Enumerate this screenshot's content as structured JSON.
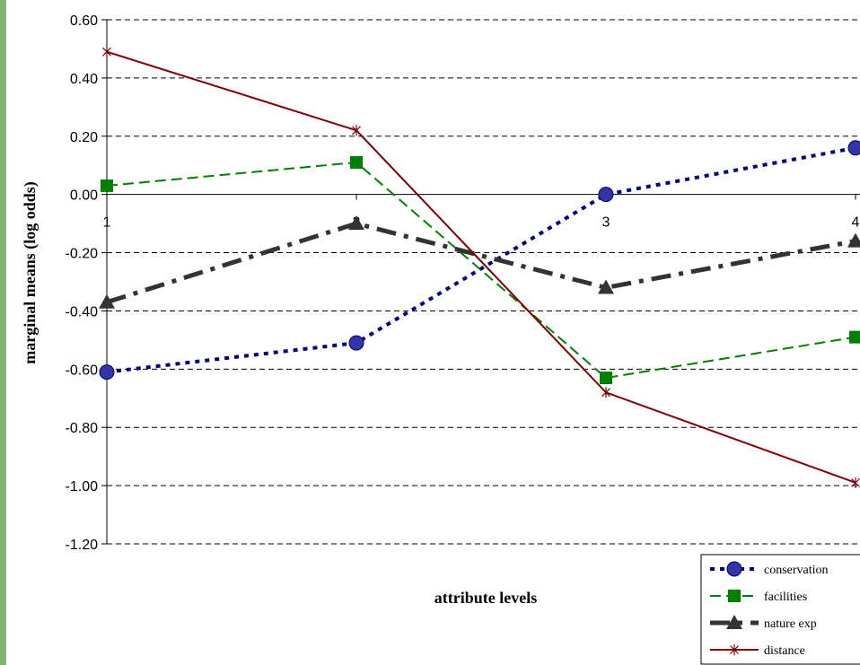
{
  "chart_data": {
    "type": "line",
    "x": [
      1,
      2,
      3,
      4
    ],
    "categories": [
      "1",
      "2",
      "3",
      "4"
    ],
    "ylabel": "marginal means (log odds)",
    "xlabel": "attribute levels",
    "ylim": [
      -1.2,
      0.6
    ],
    "yticks": [
      "0.60",
      "0.40",
      "0.20",
      "0.00",
      "-0.20",
      "-0.40",
      "-0.60",
      "-0.80",
      "-1.00",
      "-1.20"
    ],
    "grid": "horizontal dashed",
    "legend_position": "bottom-right",
    "series": [
      {
        "name": "conservation",
        "values": [
          -0.61,
          -0.51,
          0.0,
          0.16
        ],
        "color": "#000080",
        "marker": "circle",
        "line": "dotted"
      },
      {
        "name": "facilities",
        "values": [
          0.03,
          0.11,
          -0.63,
          -0.49
        ],
        "color": "#008000",
        "marker": "square",
        "line": "dashed"
      },
      {
        "name": "nature exp",
        "values": [
          -0.37,
          -0.1,
          -0.32,
          -0.16
        ],
        "color": "#333333",
        "marker": "triangle",
        "line": "dashdot"
      },
      {
        "name": "distance",
        "values": [
          0.49,
          0.22,
          -0.68,
          -0.99
        ],
        "color": "#800000",
        "marker": "star",
        "line": "solid"
      }
    ]
  }
}
